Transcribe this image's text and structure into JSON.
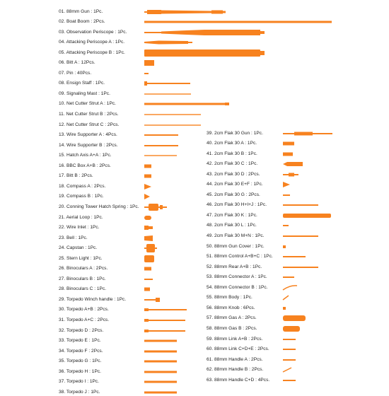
{
  "accent_color": "#f7821f",
  "left_column": [
    {
      "label": "01. 88mm Gun : 1Pc.",
      "shape": "gun-barrel"
    },
    {
      "label": "02. Boat Boom : 2Pcs.",
      "shape": "long-rod"
    },
    {
      "label": "03. Observation Periscope : 1Pc.",
      "shape": "periscope"
    },
    {
      "label": "04. Attacking Periscope A : 1Pc.",
      "shape": "tapered-rod"
    },
    {
      "label": "05. Attacking Periscope B : 1Pc.",
      "shape": "periscope-tube"
    },
    {
      "label": "06. Bitt A : 12Pcs.",
      "shape": "block"
    },
    {
      "label": "07. Pin : 40Pcs.",
      "shape": "pin"
    },
    {
      "label": "08. Ensign Staff : 1Pc.",
      "shape": "staff"
    },
    {
      "label": "09. Signaling Mast : 1Pc.",
      "shape": "thin-rod"
    },
    {
      "label": "10. Net Cutter Strut A : 1Pc.",
      "shape": "strut"
    },
    {
      "label": "11. Net Cutter Strut B : 2Pcs.",
      "shape": "thin-rod"
    },
    {
      "label": "12. Net Cutter Strut C : 2Pcs.",
      "shape": "thin-rod"
    },
    {
      "label": "13. Wire Supporter A : 4Pcs.",
      "shape": "wire"
    },
    {
      "label": "14. Wire Supporter B : 2Pcs.",
      "shape": "wire"
    },
    {
      "label": "15. Hatch Axis A+A : 1Pc.",
      "shape": "thin-rod"
    },
    {
      "label": "16. BBC Box A+B : 2Pcs.",
      "shape": "small-part"
    },
    {
      "label": "17. Bitt B : 2Pcs.",
      "shape": "small-part"
    },
    {
      "label": "18. Compass A : 2Pcs.",
      "shape": "compass"
    },
    {
      "label": "19. Compass B : 1Pc.",
      "shape": "compass"
    },
    {
      "label": "20. Conning Tower Hatch Spring : 1Pc.",
      "shape": "spring"
    },
    {
      "label": "21. Aerial Loop : 1Pc.",
      "shape": "loop"
    },
    {
      "label": "22. Wire Inlet : 1Pc.",
      "shape": "inlet"
    },
    {
      "label": "23. Bell : 1Pc.",
      "shape": "bell"
    },
    {
      "label": "24. Capstan : 1Pc.",
      "shape": "capstan"
    },
    {
      "label": "25. Stern Light : 1Pc.",
      "shape": "light"
    },
    {
      "label": "26. Binoculars A : 2Pcs.",
      "shape": "small-part"
    },
    {
      "label": "27. Binoculars B : 1Pc.",
      "shape": "thin-short"
    },
    {
      "label": "28. Binoculars C : 1Pc.",
      "shape": "small-part"
    },
    {
      "label": "29. Torpedo Winch handle : 1Pc.",
      "shape": "handle"
    },
    {
      "label": "30. Torpedo A+B : 2Pcs.",
      "shape": "torpedo"
    },
    {
      "label": "31. Torpedo A+C : 2Pcs.",
      "shape": "torpedo"
    },
    {
      "label": "32. Torpedo D : 2Pcs.",
      "shape": "torpedo"
    },
    {
      "label": "33. Torpedo E : 1Pc.",
      "shape": "torpedo-short"
    },
    {
      "label": "34. Torpedo F : 2Pcs.",
      "shape": "torpedo-short"
    },
    {
      "label": "35. Torpedo G : 1Pc.",
      "shape": "torpedo-short"
    },
    {
      "label": "36. Torpedo H : 1Pc.",
      "shape": "torpedo-short"
    },
    {
      "label": "37. Torpedo I : 1Pc.",
      "shape": "torpedo-short"
    },
    {
      "label": "38. Torpedo J : 1Pc.",
      "shape": "torpedo-short"
    }
  ],
  "right_column": [
    {
      "label": "39. 2cm Flak 30 Gun : 1Pc.",
      "shape": "flak-gun"
    },
    {
      "label": "40. 2cm Flak 30 A : 1Pc.",
      "shape": "small-part"
    },
    {
      "label": "41. 2cm Flak 30 B : 1Pc.",
      "shape": "small-part"
    },
    {
      "label": "42. 2cm Flak 30 C : 1Pc.",
      "shape": "flak-c"
    },
    {
      "label": "43. 2cm Flak 30 D : 2Pcs.",
      "shape": "flak-d"
    },
    {
      "label": "44. 2cm Flak 30 E+F : 1Pc.",
      "shape": "compass"
    },
    {
      "label": "45. 2cm Flak 30 G : 2Pcs.",
      "shape": "thin-short"
    },
    {
      "label": "46. 2cm Flak 30 H+I+J : 1Pc.",
      "shape": "wire"
    },
    {
      "label": "47. 2cm Flak 30 K : 1Pc.",
      "shape": "flak-k"
    },
    {
      "label": "48. 2cm Flak 30 L : 1Pc.",
      "shape": "thin-short"
    },
    {
      "label": "49. 2cm Flak 30 M+N : 1Pc.",
      "shape": "wire"
    },
    {
      "label": "50. 88mm Gun Cover : 1Pc.",
      "shape": "dot"
    },
    {
      "label": "51. 88mm Control A+B+C : 1Pc.",
      "shape": "wire"
    },
    {
      "label": "52. 88mm Rear A+B : 1Pc.",
      "shape": "wire"
    },
    {
      "label": "53. 88mm Connector A : 1Pc.",
      "shape": "thin-short"
    },
    {
      "label": "54. 88mm Connector B : 1Pc.",
      "shape": "curve"
    },
    {
      "label": "55. 88mm Body : 1Pc.",
      "shape": "small-curve"
    },
    {
      "label": "56. 88mm Knob : 6Pcs.",
      "shape": "dot"
    },
    {
      "label": "57. 88mm Gas A : 2Pcs.",
      "shape": "gas"
    },
    {
      "label": "58. 88mm Gas B : 2Pcs.",
      "shape": "gas"
    },
    {
      "label": "59. 88mm Link A+B : 2Pcs.",
      "shape": "thin-short"
    },
    {
      "label": "60. 88mm Link C+D+E : 2Pcs.",
      "shape": "thin-short"
    },
    {
      "label": "61. 88mm Handle A : 2Pcs.",
      "shape": "thin-short"
    },
    {
      "label": "62. 88mm Handle B : 2Pcs.",
      "shape": "small-curve"
    },
    {
      "label": "63. 88mm Handle C+D : 4Pcs.",
      "shape": "thin-short"
    }
  ]
}
